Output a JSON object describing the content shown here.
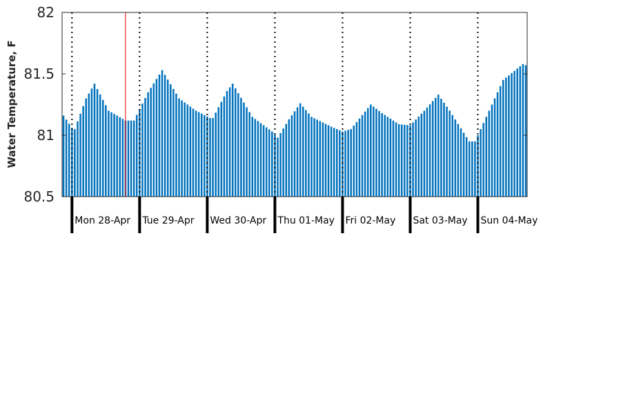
{
  "chart_data": {
    "type": "bar",
    "title": "",
    "xlabel": "",
    "ylabel": "Water Temperature, F",
    "ylim": [
      80.5,
      82
    ],
    "yticks": [
      80.5,
      81,
      81.5,
      82
    ],
    "ytick_labels": [
      "80.5",
      "81",
      "81.5",
      "82"
    ],
    "x_start": "2025-04-27T21:00",
    "x_end": "2025-05-04T17:00",
    "x_step_hours": 1,
    "day_labels": [
      {
        "date": "2025-04-28",
        "label": "Mon 28-Apr"
      },
      {
        "date": "2025-04-29",
        "label": "Tue 29-Apr"
      },
      {
        "date": "2025-04-30",
        "label": "Wed 30-Apr"
      },
      {
        "date": "2025-05-01",
        "label": "Thu 01-May"
      },
      {
        "date": "2025-05-02",
        "label": "Fri 02-May"
      },
      {
        "date": "2025-05-03",
        "label": "Sat 03-May"
      },
      {
        "date": "2025-05-04",
        "label": "Sun 04-May"
      }
    ],
    "current_time_marker": "2025-04-28T19:00",
    "grid": "daily dotted vertical lines",
    "series": [
      {
        "color": "#0072bd",
        "keyframes": [
          [
            "2025-04-27T21:00",
            81.16
          ],
          [
            "2025-04-28T00:00",
            81.06
          ],
          [
            "2025-04-28T01:00",
            81.05
          ],
          [
            "2025-04-28T05:00",
            81.3
          ],
          [
            "2025-04-28T08:00",
            81.42
          ],
          [
            "2025-04-28T13:00",
            81.2
          ],
          [
            "2025-04-28T19:00",
            81.12
          ],
          [
            "2025-04-28T22:00",
            81.12
          ],
          [
            "2025-04-29T03:00",
            81.35
          ],
          [
            "2025-04-29T08:00",
            81.53
          ],
          [
            "2025-04-29T14:00",
            81.3
          ],
          [
            "2025-04-29T20:00",
            81.2
          ],
          [
            "2025-04-30T01:00",
            81.14
          ],
          [
            "2025-04-30T02:00",
            81.14
          ],
          [
            "2025-04-30T07:00",
            81.36
          ],
          [
            "2025-04-30T09:00",
            81.42
          ],
          [
            "2025-04-30T16:00",
            81.15
          ],
          [
            "2025-04-30T23:00",
            81.03
          ],
          [
            "2025-05-01T01:00",
            80.98
          ],
          [
            "2025-05-01T05:00",
            81.13
          ],
          [
            "2025-05-01T09:00",
            81.26
          ],
          [
            "2025-05-01T13:00",
            81.15
          ],
          [
            "2025-05-01T20:00",
            81.07
          ],
          [
            "2025-05-02T00:00",
            81.03
          ],
          [
            "2025-05-02T03:00",
            81.05
          ],
          [
            "2025-05-02T10:00",
            81.25
          ],
          [
            "2025-05-02T14:00",
            81.18
          ],
          [
            "2025-05-02T20:00",
            81.09
          ],
          [
            "2025-05-03T00:00",
            81.08
          ],
          [
            "2025-05-03T05:00",
            81.2
          ],
          [
            "2025-05-03T10:00",
            81.33
          ],
          [
            "2025-05-03T14:00",
            81.2
          ],
          [
            "2025-05-03T19:00",
            81.02
          ],
          [
            "2025-05-03T21:00",
            80.95
          ],
          [
            "2025-05-03T23:00",
            80.95
          ],
          [
            "2025-05-04T03:00",
            81.15
          ],
          [
            "2025-05-04T09:00",
            81.45
          ],
          [
            "2025-05-04T16:00",
            81.58
          ],
          [
            "2025-05-04T17:00",
            81.57
          ]
        ]
      }
    ]
  }
}
